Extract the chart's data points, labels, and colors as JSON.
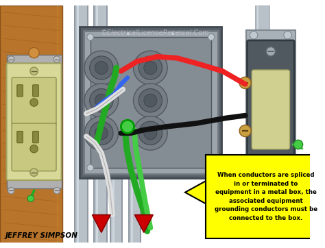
{
  "figsize": [
    4.74,
    3.62
  ],
  "dpi": 100,
  "bg_color": "#ffffff",
  "watermark": "©ElectricalLicenseRenewal.Com",
  "author": "JEFFREY SIMPSON",
  "callout_text": "When conductors are spliced\nin or terminated to\nequipment in a metal box, the\nassociated equipment\ngrounding conductors must be\nconnected to the box.",
  "callout_bg": "#ffff00",
  "callout_border": "#000000",
  "wood_color": "#b8742a",
  "wood_dark": "#8a5018",
  "conduit_color": "#b8c0c8",
  "conduit_highlight": "#d8e0e8",
  "conduit_shadow": "#8890a0",
  "box_outer": "#6a7278",
  "box_face": "#9ca4ac",
  "box_inner": "#848c94",
  "ko_outer": "#6a7278",
  "ko_inner": "#505860",
  "wire_red": "#ee2222",
  "wire_black": "#111111",
  "wire_white": "#e0e0e0",
  "wire_blue": "#3366ee",
  "wire_green": "#22aa22",
  "wire_green2": "#44cc44",
  "outlet_body": "#d8d898",
  "outlet_border": "#a0a060",
  "outlet_slot": "#888848",
  "switch_body": "#505860",
  "switch_paddle": "#d0d090",
  "switch_screw": "#c8a040"
}
